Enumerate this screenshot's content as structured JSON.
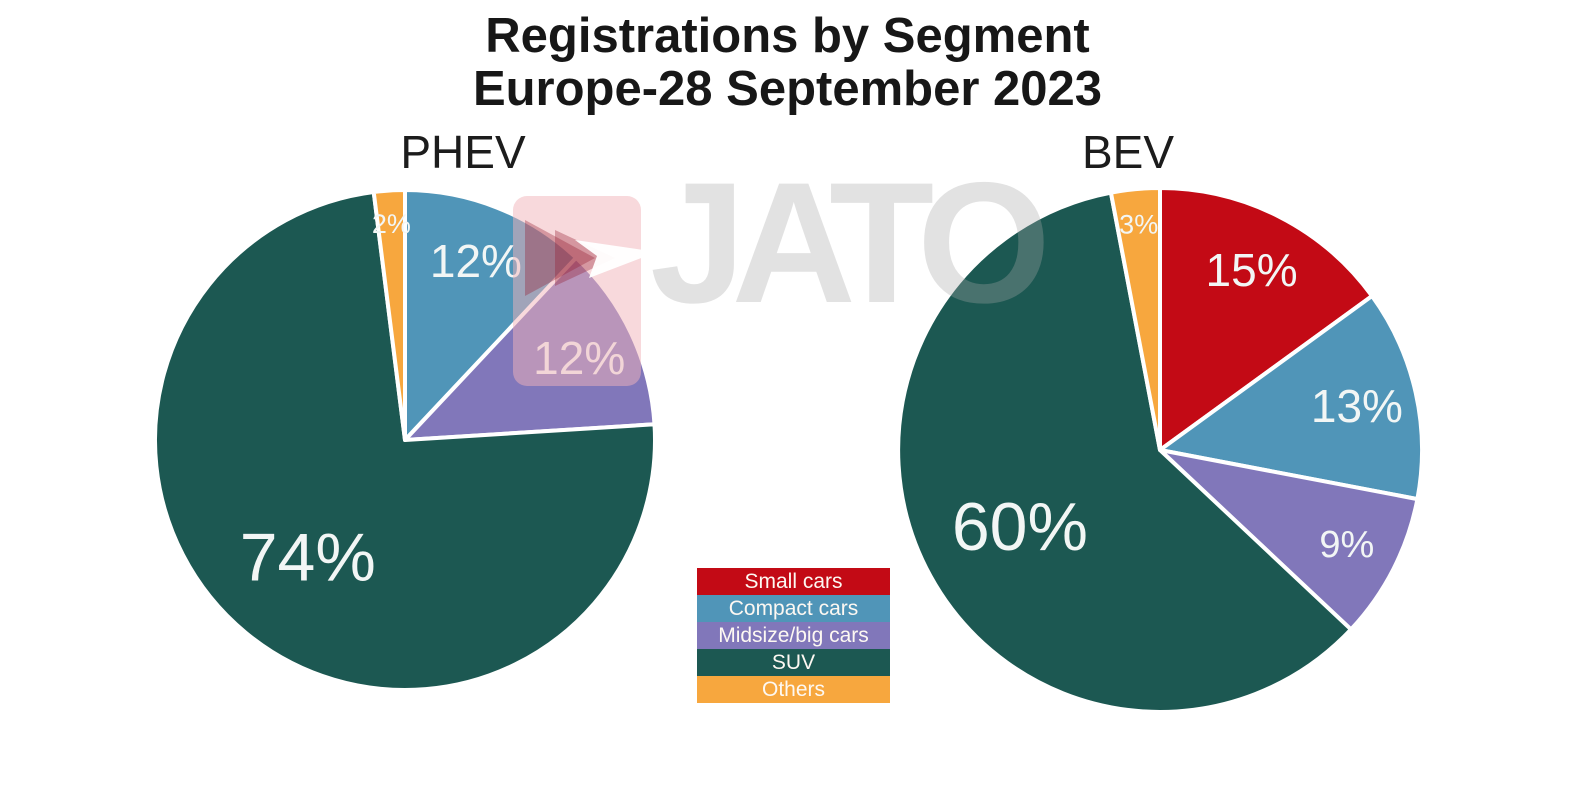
{
  "title": {
    "line1": "Registrations by Segment",
    "line2": "Europe-28 September 2023"
  },
  "watermark": {
    "text": "JATO"
  },
  "legend": {
    "position": "center-bottom",
    "items": [
      {
        "label": "Small cars",
        "color": "#c30a15"
      },
      {
        "label": "Compact cars",
        "color": "#5095b8"
      },
      {
        "label": "Midsize/big cars",
        "color": "#8177ba"
      },
      {
        "label": "SUV",
        "color": "#1c5852"
      },
      {
        "label": "Others",
        "color": "#f7a73e"
      }
    ]
  },
  "chart_data": [
    {
      "type": "pie",
      "title": "PHEV",
      "unit": "%",
      "start": "top",
      "direction": "clockwise",
      "categories": [
        "Small cars",
        "Compact cars",
        "Midsize/big cars",
        "SUV",
        "Others"
      ],
      "values": [
        0,
        12,
        12,
        74,
        2
      ],
      "labels": [
        "",
        "12%",
        "12%",
        "74%",
        "2%"
      ],
      "colors": [
        "#c30a15",
        "#5095b8",
        "#8177ba",
        "#1c5852",
        "#f7a73e"
      ],
      "label_color": "#f2f6f5"
    },
    {
      "type": "pie",
      "title": "BEV",
      "unit": "%",
      "start": "top",
      "direction": "clockwise",
      "categories": [
        "Small cars",
        "Compact cars",
        "Midsize/big cars",
        "SUV",
        "Others"
      ],
      "values": [
        15,
        13,
        9,
        60,
        3
      ],
      "labels": [
        "15%",
        "13%",
        "9%",
        "60%",
        "3%"
      ],
      "colors": [
        "#c30a15",
        "#5095b8",
        "#8177ba",
        "#1c5852",
        "#f7a73e"
      ],
      "label_color": "#f2f6f5"
    }
  ]
}
